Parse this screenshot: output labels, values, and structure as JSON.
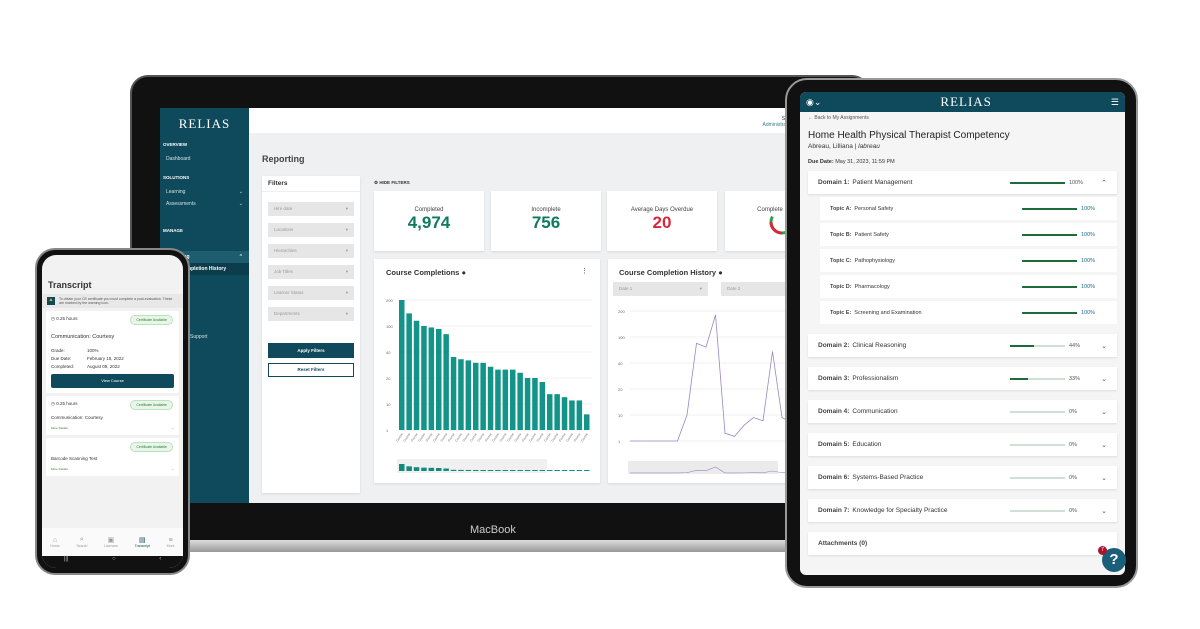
{
  "laptop": {
    "brand": "MacBook",
    "logo": "RELIAS",
    "sidebar": {
      "overview": "OVERVIEW",
      "dashboard": "Dashboard",
      "solutions": "SOLUTIONS",
      "learning": "Learning",
      "assessments": "Assessments",
      "manage": "MANAGE",
      "reporting": "Reporting",
      "completion_history": "Completion History",
      "support": "Support"
    },
    "header": {
      "user": "Sam",
      "role": "Administrator"
    },
    "page_title": "Reporting",
    "filters": {
      "title": "Filters",
      "fields": [
        "Hire date",
        "Locations",
        "Hierarchies",
        "Job Titles",
        "Learner Status",
        "Departments"
      ],
      "apply": "Apply Filters",
      "reset": "Reset Filters",
      "hide": "HIDE FILTERS"
    },
    "stats": [
      {
        "label": "Completed",
        "value": "4,974",
        "color": "#0e7a61"
      },
      {
        "label": "Incomplete",
        "value": "756",
        "color": "#0e7a61"
      },
      {
        "label": "Average Days Overdue",
        "value": "20",
        "color": "#d7263d"
      },
      {
        "label": "Complete",
        "value": ""
      }
    ],
    "course_completions": {
      "title": "Course Completions",
      "y_ticks": [
        "200",
        "100",
        "40",
        "20",
        "10",
        "1"
      ],
      "bar_label": "Course",
      "values": [
        210,
        140,
        115,
        100,
        95,
        90,
        75,
        35,
        33,
        32,
        30,
        30,
        27,
        25,
        25,
        25,
        23,
        20,
        20,
        18,
        13,
        13,
        12,
        11,
        11,
        4
      ],
      "color": "#139488"
    },
    "completion_history": {
      "title": "Course Completion History",
      "date1": "Date 1",
      "date2": "Date 2",
      "y_ticks": [
        "200",
        "100",
        "40",
        "20",
        "10",
        "1"
      ],
      "values": [
        1,
        1,
        1,
        1,
        1,
        1,
        10,
        80,
        70,
        180,
        2,
        1.5,
        4,
        8,
        6,
        60,
        8,
        5,
        1,
        1
      ],
      "color": "#9b87c4"
    }
  },
  "tablet": {
    "logo": "RELIAS",
    "back": "Back to My Assignments",
    "title": "Home Health Physical Therapist Competency",
    "learner": "Abreau, Lilliana",
    "username": "labreau",
    "due_label": "Due Date:",
    "due": "May 31, 2023, 11:59 PM",
    "domains": [
      {
        "key": "Domain 1:",
        "name": "Patient Management",
        "pct": 100,
        "pct_label": "100%",
        "expanded": true
      },
      {
        "key": "Domain 2:",
        "name": "Clinical Reasoning",
        "pct": 44,
        "pct_label": "44%"
      },
      {
        "key": "Domain 3:",
        "name": "Professionalism",
        "pct": 33,
        "pct_label": "33%"
      },
      {
        "key": "Domain 4:",
        "name": "Communication",
        "pct": 0,
        "pct_label": "0%"
      },
      {
        "key": "Domain 5:",
        "name": "Education",
        "pct": 0,
        "pct_label": "0%"
      },
      {
        "key": "Domain 6:",
        "name": "Systems-Based Practice",
        "pct": 0,
        "pct_label": "0%"
      },
      {
        "key": "Domain 7:",
        "name": "Knowledge for Specialty Practice",
        "pct": 0,
        "pct_label": "0%"
      }
    ],
    "topics": [
      {
        "key": "Topic A:",
        "name": "Personal Safety",
        "pct": 100,
        "pct_label": "100%"
      },
      {
        "key": "Topic B:",
        "name": "Patient Safety",
        "pct": 100,
        "pct_label": "100%"
      },
      {
        "key": "Topic C:",
        "name": "Pathophysiology",
        "pct": 100,
        "pct_label": "100%"
      },
      {
        "key": "Topic D:",
        "name": "Pharmacology",
        "pct": 100,
        "pct_label": "100%"
      },
      {
        "key": "Topic E:",
        "name": "Screening and Examination",
        "pct": 100,
        "pct_label": "100%"
      }
    ],
    "attachments": "Attachments (0)",
    "help_badge": "7",
    "help": "?"
  },
  "phone": {
    "title": "Transcript",
    "notice": "To obtain your CE certificate you must complete a post-evaluation. These are marked by the warning icon.",
    "cert": "Certificate Available",
    "hours": "0.25 hours",
    "more": "More Details",
    "view": "View Course",
    "course1": {
      "name": "Communication: Courtesy",
      "grade_l": "Grade:",
      "grade": "100%",
      "due_l": "Due Date:",
      "due": "February 15, 2022",
      "comp_l": "Completed:",
      "comp": "August 09, 2022"
    },
    "course2": "Communication: Courtesy",
    "course3": "Barcode Scanning Test",
    "nav": [
      "Home",
      "Search",
      "Licenses",
      "Transcript",
      "More"
    ]
  }
}
